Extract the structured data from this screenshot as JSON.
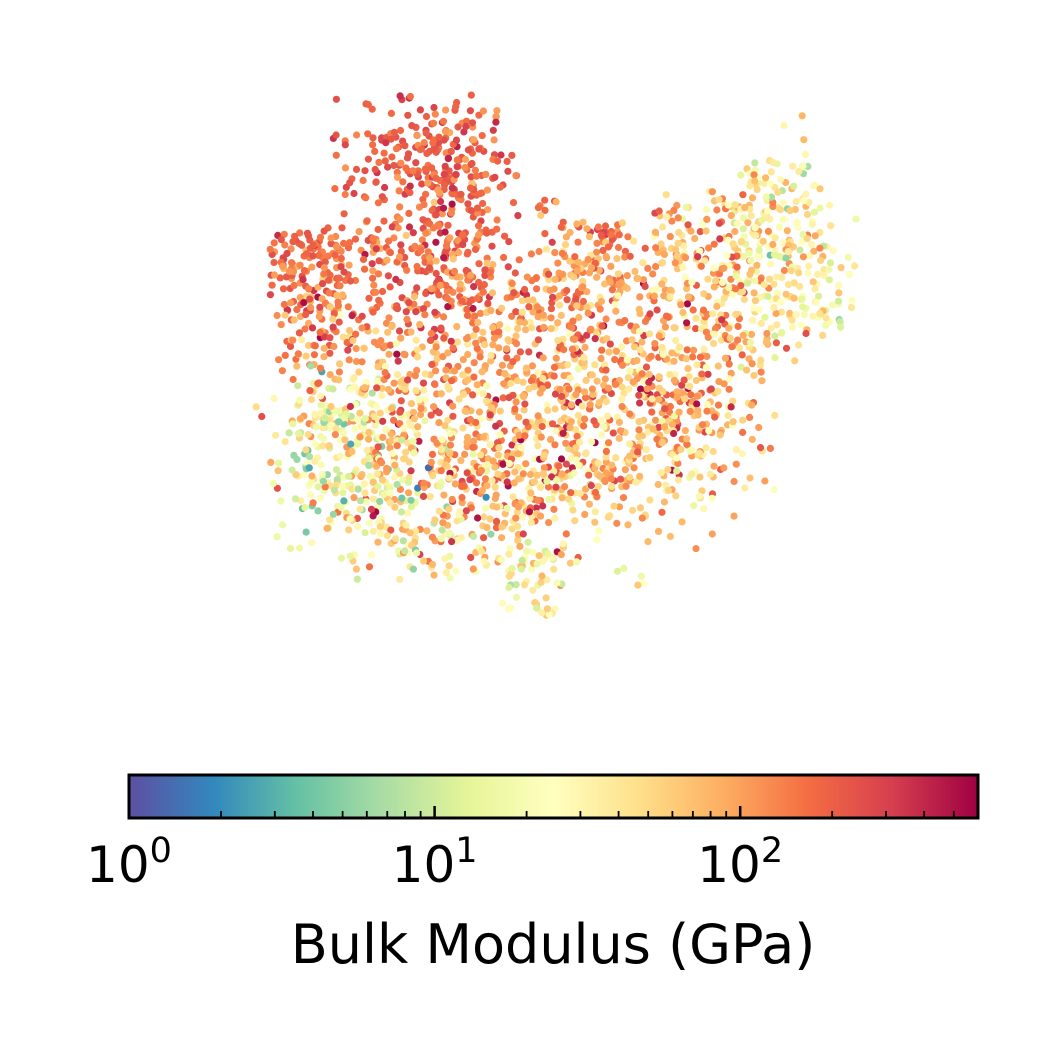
{
  "chart_data": {
    "type": "scatter",
    "title": "",
    "xlabel": "",
    "ylabel": "",
    "axes_visible": false,
    "grid": false,
    "colormap": {
      "name": "Spectral_r",
      "scale": "log",
      "range": [
        1,
        600
      ],
      "stops": [
        "#5e4fa2",
        "#3288bd",
        "#66c2a5",
        "#abdda4",
        "#e6f598",
        "#ffffbf",
        "#fee08b",
        "#fdae61",
        "#f46d43",
        "#d53e4f",
        "#9e0142"
      ]
    },
    "colorbar": {
      "placement": "bottom",
      "label": "Bulk Modulus (GPa)",
      "ticks": [
        {
          "base": "10",
          "exp": "0",
          "value": 1
        },
        {
          "base": "10",
          "exp": "1",
          "value": 10
        },
        {
          "base": "10",
          "exp": "2",
          "value": 100
        }
      ]
    },
    "point_count": 3200,
    "value_distribution": "mostly 20–300 GPa (orange/red), fewer values 1–10 GPa (blue/green)"
  }
}
